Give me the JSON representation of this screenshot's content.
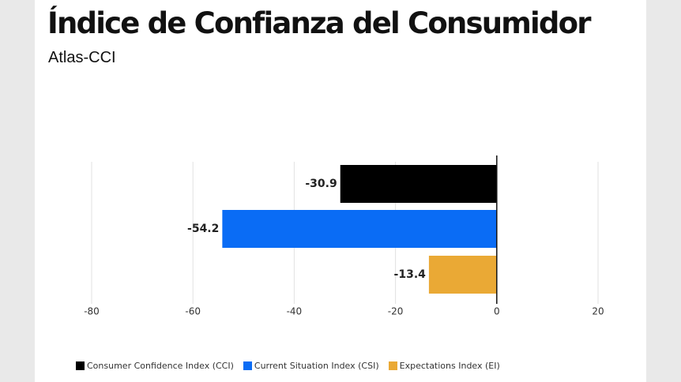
{
  "header": {
    "title": "Índice de Confianza del Consumidor",
    "subtitle": "Atlas-CCI"
  },
  "chart_data": {
    "type": "bar",
    "orientation": "horizontal",
    "categories": [
      "Consumer Confidence Index (CCI)",
      "Current Situation Index (CSI)",
      "Expectations Index (EI)"
    ],
    "values": [
      -30.9,
      -54.2,
      -13.4
    ],
    "value_labels": [
      "-30.9",
      "-54.2",
      "-13.4"
    ],
    "colors": [
      "#000000",
      "#0a6cf5",
      "#eaa935"
    ],
    "xlim": [
      -80,
      20
    ],
    "xticks": [
      -80,
      -60,
      -40,
      -20,
      0,
      20
    ],
    "xtick_labels": [
      "-80",
      "-60",
      "-40",
      "-20",
      "0",
      "20"
    ],
    "grid": true,
    "legend_position": "bottom-left"
  }
}
